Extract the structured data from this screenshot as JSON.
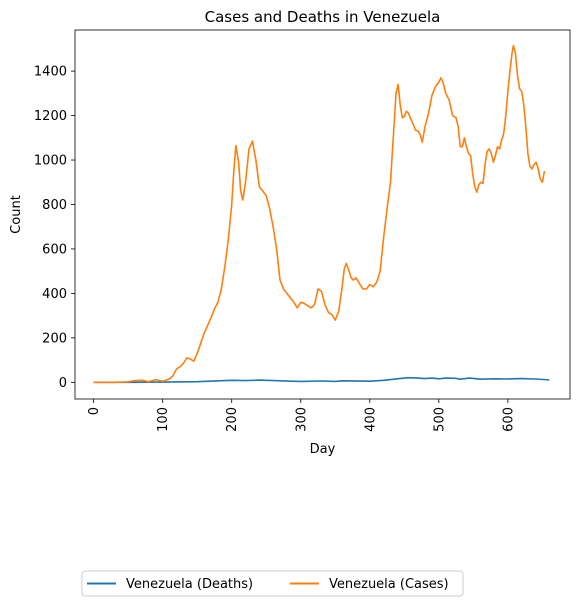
{
  "chart_data": {
    "type": "line",
    "title": "Cases and Deaths in Venezuela",
    "xlabel": "Day",
    "ylabel": "Count",
    "xlim": [
      -27,
      690
    ],
    "ylim": [
      -75,
      1585
    ],
    "x_ticks": [
      0,
      100,
      200,
      300,
      400,
      500,
      600
    ],
    "y_ticks": [
      0,
      200,
      400,
      600,
      800,
      1000,
      1200,
      1400
    ],
    "x_tick_rotation": 90,
    "grid": false,
    "legend": {
      "position": "bottom-left, below axes",
      "columns": 2
    },
    "series": [
      {
        "name": "Venezuela (Deaths)",
        "color": "#1f77b4",
        "points": [
          [
            0,
            0
          ],
          [
            50,
            0
          ],
          [
            100,
            1
          ],
          [
            150,
            3
          ],
          [
            200,
            9
          ],
          [
            220,
            8
          ],
          [
            240,
            10
          ],
          [
            260,
            8
          ],
          [
            300,
            4
          ],
          [
            330,
            6
          ],
          [
            350,
            4
          ],
          [
            360,
            7
          ],
          [
            400,
            5
          ],
          [
            420,
            9
          ],
          [
            440,
            16
          ],
          [
            455,
            21
          ],
          [
            470,
            19
          ],
          [
            480,
            17
          ],
          [
            490,
            19
          ],
          [
            500,
            16
          ],
          [
            510,
            19
          ],
          [
            525,
            18
          ],
          [
            530,
            14
          ],
          [
            545,
            19
          ],
          [
            560,
            14
          ],
          [
            580,
            16
          ],
          [
            600,
            15
          ],
          [
            620,
            17
          ],
          [
            640,
            15
          ],
          [
            660,
            11
          ]
        ]
      },
      {
        "name": "Venezuela (Cases)",
        "color": "#ff7f0e",
        "points": [
          [
            0,
            0
          ],
          [
            30,
            0
          ],
          [
            50,
            2
          ],
          [
            60,
            8
          ],
          [
            70,
            9
          ],
          [
            80,
            3
          ],
          [
            90,
            12
          ],
          [
            100,
            5
          ],
          [
            110,
            15
          ],
          [
            115,
            30
          ],
          [
            120,
            60
          ],
          [
            125,
            70
          ],
          [
            130,
            85
          ],
          [
            135,
            110
          ],
          [
            140,
            105
          ],
          [
            145,
            95
          ],
          [
            150,
            130
          ],
          [
            160,
            220
          ],
          [
            170,
            290
          ],
          [
            175,
            330
          ],
          [
            180,
            360
          ],
          [
            185,
            420
          ],
          [
            190,
            520
          ],
          [
            195,
            640
          ],
          [
            200,
            800
          ],
          [
            203,
            950
          ],
          [
            206,
            1065
          ],
          [
            210,
            990
          ],
          [
            213,
            860
          ],
          [
            216,
            820
          ],
          [
            220,
            900
          ],
          [
            225,
            1050
          ],
          [
            230,
            1085
          ],
          [
            235,
            1000
          ],
          [
            240,
            880
          ],
          [
            245,
            860
          ],
          [
            250,
            840
          ],
          [
            255,
            780
          ],
          [
            260,
            700
          ],
          [
            265,
            600
          ],
          [
            270,
            460
          ],
          [
            275,
            420
          ],
          [
            280,
            400
          ],
          [
            285,
            380
          ],
          [
            290,
            360
          ],
          [
            295,
            335
          ],
          [
            300,
            360
          ],
          [
            305,
            355
          ],
          [
            310,
            345
          ],
          [
            315,
            335
          ],
          [
            320,
            350
          ],
          [
            325,
            420
          ],
          [
            330,
            410
          ],
          [
            335,
            350
          ],
          [
            340,
            315
          ],
          [
            345,
            305
          ],
          [
            350,
            280
          ],
          [
            355,
            320
          ],
          [
            360,
            430
          ],
          [
            363,
            510
          ],
          [
            366,
            535
          ],
          [
            370,
            500
          ],
          [
            373,
            470
          ],
          [
            376,
            460
          ],
          [
            380,
            470
          ],
          [
            383,
            455
          ],
          [
            386,
            440
          ],
          [
            390,
            420
          ],
          [
            395,
            420
          ],
          [
            400,
            440
          ],
          [
            405,
            430
          ],
          [
            410,
            450
          ],
          [
            415,
            500
          ],
          [
            420,
            650
          ],
          [
            425,
            780
          ],
          [
            430,
            900
          ],
          [
            435,
            1150
          ],
          [
            438,
            1300
          ],
          [
            441,
            1340
          ],
          [
            444,
            1250
          ],
          [
            447,
            1190
          ],
          [
            450,
            1195
          ],
          [
            453,
            1220
          ],
          [
            456,
            1210
          ],
          [
            460,
            1180
          ],
          [
            463,
            1160
          ],
          [
            466,
            1135
          ],
          [
            470,
            1130
          ],
          [
            473,
            1115
          ],
          [
            476,
            1080
          ],
          [
            480,
            1150
          ],
          [
            485,
            1210
          ],
          [
            490,
            1290
          ],
          [
            495,
            1330
          ],
          [
            500,
            1350
          ],
          [
            503,
            1370
          ],
          [
            506,
            1350
          ],
          [
            510,
            1300
          ],
          [
            515,
            1270
          ],
          [
            520,
            1200
          ],
          [
            525,
            1190
          ],
          [
            528,
            1150
          ],
          [
            531,
            1060
          ],
          [
            534,
            1060
          ],
          [
            537,
            1100
          ],
          [
            540,
            1060
          ],
          [
            543,
            1030
          ],
          [
            546,
            1020
          ],
          [
            549,
            940
          ],
          [
            552,
            880
          ],
          [
            555,
            855
          ],
          [
            558,
            890
          ],
          [
            561,
            900
          ],
          [
            564,
            895
          ],
          [
            567,
            980
          ],
          [
            570,
            1040
          ],
          [
            573,
            1050
          ],
          [
            576,
            1030
          ],
          [
            579,
            990
          ],
          [
            582,
            1020
          ],
          [
            585,
            1060
          ],
          [
            588,
            1050
          ],
          [
            591,
            1090
          ],
          [
            594,
            1120
          ],
          [
            597,
            1200
          ],
          [
            600,
            1310
          ],
          [
            603,
            1400
          ],
          [
            606,
            1480
          ],
          [
            608,
            1515
          ],
          [
            611,
            1480
          ],
          [
            614,
            1380
          ],
          [
            617,
            1320
          ],
          [
            620,
            1310
          ],
          [
            623,
            1250
          ],
          [
            626,
            1150
          ],
          [
            629,
            1030
          ],
          [
            632,
            970
          ],
          [
            635,
            960
          ],
          [
            638,
            980
          ],
          [
            641,
            990
          ],
          [
            644,
            960
          ],
          [
            647,
            915
          ],
          [
            650,
            900
          ],
          [
            653,
            950
          ]
        ]
      }
    ]
  }
}
